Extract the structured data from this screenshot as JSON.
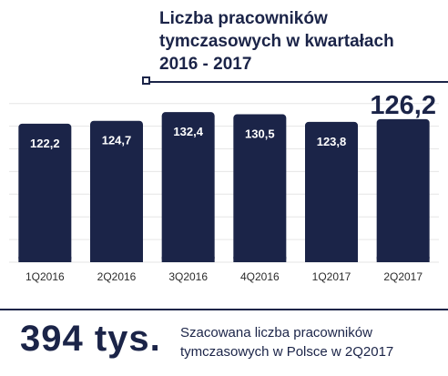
{
  "title": "Liczba pracowników tymczasowych w kwartałach 2016 - 2017",
  "chart_data": {
    "type": "bar",
    "categories": [
      "1Q2016",
      "2Q2016",
      "3Q2016",
      "4Q2016",
      "1Q2017",
      "2Q2017"
    ],
    "values": [
      122.2,
      124.7,
      132.4,
      130.5,
      123.8,
      126.2
    ],
    "value_labels": [
      "122,2",
      "124,7",
      "132,4",
      "130,5",
      "123,8",
      "126,2"
    ],
    "ylim": [
      0,
      140
    ],
    "grid": true,
    "highlight_last": true,
    "bar_color": "#1b2448"
  },
  "summary": {
    "value": "394 tys.",
    "description": "Szacowana liczba pracowników tymczasowych w Polsce w 2Q2017"
  },
  "colors": {
    "accent": "#1b2448",
    "grid": "#e6e6e6"
  }
}
